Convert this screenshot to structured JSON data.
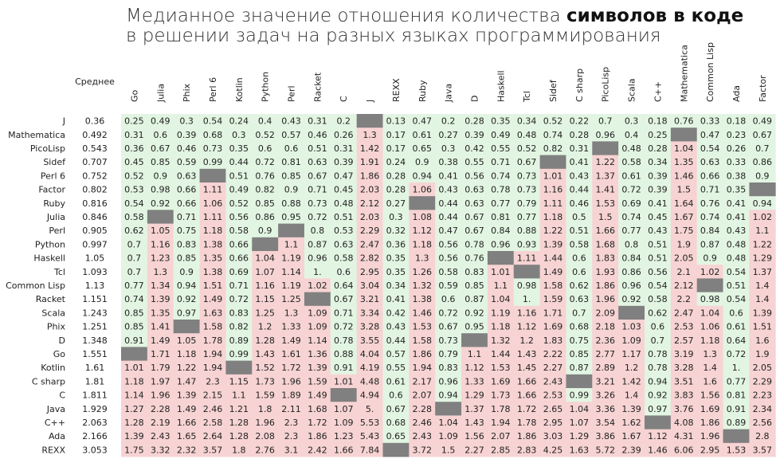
{
  "title": {
    "line1_before": "Медианное значение отношения количества ",
    "line1_bold": "символов в коде",
    "line2": "в решении задач на разных языках программирования"
  },
  "colors": {
    "green": "#e2f5e2",
    "red": "#f7d3d3",
    "missing": "#808080"
  },
  "chart_data": {
    "type": "heatmap",
    "mean_label": "Среднее",
    "columns": [
      "Go",
      "Julia",
      "Phix",
      "Perl 6",
      "Kotlin",
      "Python",
      "Perl",
      "Racket",
      "C",
      "J",
      "REXX",
      "Ruby",
      "Java",
      "D",
      "Haskell",
      "Tcl",
      "Sidef",
      "C sharp",
      "PicoLisp",
      "Scala",
      "C++",
      "Mathematica",
      "Common Lisp",
      "Ada",
      "Factor"
    ],
    "rows": [
      {
        "name": "J",
        "mean": "0.36",
        "values": [
          "0.25",
          "0.49",
          "0.3",
          "0.54",
          "0.24",
          "0.4",
          "0.43",
          "0.31",
          "0.2",
          null,
          "0.13",
          "0.47",
          "0.2",
          "0.28",
          "0.35",
          "0.34",
          "0.52",
          "0.22",
          "0.7",
          "0.3",
          "0.18",
          "0.76",
          "0.33",
          "0.18",
          "0.49"
        ]
      },
      {
        "name": "Mathematica",
        "mean": "0.492",
        "values": [
          "0.31",
          "0.6",
          "0.39",
          "0.68",
          "0.3",
          "0.52",
          "0.57",
          "0.46",
          "0.26",
          "1.3",
          "0.17",
          "0.61",
          "0.27",
          "0.39",
          "0.49",
          "0.48",
          "0.74",
          "0.28",
          "0.96",
          "0.4",
          "0.25",
          null,
          "0.47",
          "0.23",
          "0.67"
        ]
      },
      {
        "name": "PicoLisp",
        "mean": "0.543",
        "values": [
          "0.36",
          "0.67",
          "0.46",
          "0.73",
          "0.35",
          "0.6",
          "0.6",
          "0.51",
          "0.31",
          "1.42",
          "0.17",
          "0.65",
          "0.3",
          "0.42",
          "0.55",
          "0.52",
          "0.82",
          "0.31",
          null,
          "0.48",
          "0.28",
          "1.04",
          "0.54",
          "0.26",
          "0.7"
        ]
      },
      {
        "name": "Sidef",
        "mean": "0.707",
        "values": [
          "0.45",
          "0.85",
          "0.59",
          "0.99",
          "0.44",
          "0.72",
          "0.81",
          "0.63",
          "0.39",
          "1.91",
          "0.24",
          "0.9",
          "0.38",
          "0.55",
          "0.71",
          "0.67",
          null,
          "0.41",
          "1.22",
          "0.58",
          "0.34",
          "1.35",
          "0.63",
          "0.33",
          "0.86"
        ]
      },
      {
        "name": "Perl 6",
        "mean": "0.752",
        "values": [
          "0.52",
          "0.9",
          "0.63",
          null,
          "0.51",
          "0.76",
          "0.85",
          "0.67",
          "0.47",
          "1.86",
          "0.28",
          "0.94",
          "0.41",
          "0.56",
          "0.74",
          "0.73",
          "1.01",
          "0.43",
          "1.37",
          "0.61",
          "0.39",
          "1.46",
          "0.66",
          "0.38",
          "0.9"
        ]
      },
      {
        "name": "Factor",
        "mean": "0.802",
        "values": [
          "0.53",
          "0.98",
          "0.66",
          "1.11",
          "0.49",
          "0.82",
          "0.9",
          "0.71",
          "0.45",
          "2.03",
          "0.28",
          "1.06",
          "0.43",
          "0.63",
          "0.78",
          "0.73",
          "1.16",
          "0.44",
          "1.41",
          "0.72",
          "0.39",
          "1.5",
          "0.71",
          "0.35",
          null
        ]
      },
      {
        "name": "Ruby",
        "mean": "0.816",
        "values": [
          "0.54",
          "0.92",
          "0.66",
          "1.06",
          "0.52",
          "0.85",
          "0.88",
          "0.73",
          "0.48",
          "2.12",
          "0.27",
          null,
          "0.44",
          "0.63",
          "0.77",
          "0.79",
          "1.11",
          "0.46",
          "1.53",
          "0.69",
          "0.41",
          "1.64",
          "0.76",
          "0.41",
          "0.94"
        ]
      },
      {
        "name": "Julia",
        "mean": "0.846",
        "values": [
          "0.58",
          null,
          "0.71",
          "1.11",
          "0.56",
          "0.86",
          "0.95",
          "0.72",
          "0.51",
          "2.03",
          "0.3",
          "1.08",
          "0.44",
          "0.67",
          "0.81",
          "0.77",
          "1.18",
          "0.5",
          "1.5",
          "0.74",
          "0.45",
          "1.67",
          "0.74",
          "0.41",
          "1.02"
        ]
      },
      {
        "name": "Perl",
        "mean": "0.905",
        "values": [
          "0.62",
          "1.05",
          "0.75",
          "1.18",
          "0.58",
          "0.9",
          null,
          "0.8",
          "0.53",
          "2.29",
          "0.32",
          "1.12",
          "0.47",
          "0.67",
          "0.84",
          "0.88",
          "1.22",
          "0.51",
          "1.66",
          "0.77",
          "0.43",
          "1.75",
          "0.84",
          "0.43",
          "1.1"
        ]
      },
      {
        "name": "Python",
        "mean": "0.997",
        "values": [
          "0.7",
          "1.16",
          "0.83",
          "1.38",
          "0.66",
          null,
          "1.1",
          "0.87",
          "0.63",
          "2.47",
          "0.36",
          "1.18",
          "0.56",
          "0.78",
          "0.96",
          "0.93",
          "1.39",
          "0.58",
          "1.68",
          "0.8",
          "0.51",
          "1.9",
          "0.87",
          "0.48",
          "1.22"
        ]
      },
      {
        "name": "Haskell",
        "mean": "1.05",
        "values": [
          "0.7",
          "1.23",
          "0.85",
          "1.35",
          "0.66",
          "1.04",
          "1.19",
          "0.96",
          "0.58",
          "2.82",
          "0.35",
          "1.3",
          "0.56",
          "0.76",
          null,
          "1.11",
          "1.44",
          "0.6",
          "1.83",
          "0.84",
          "0.51",
          "2.05",
          "0.9",
          "0.48",
          "1.29"
        ]
      },
      {
        "name": "Tcl",
        "mean": "1.093",
        "values": [
          "0.7",
          "1.3",
          "0.9",
          "1.38",
          "0.69",
          "1.07",
          "1.14",
          "1.",
          "0.6",
          "2.95",
          "0.35",
          "1.26",
          "0.58",
          "0.83",
          "1.01",
          null,
          "1.49",
          "0.6",
          "1.93",
          "0.86",
          "0.56",
          "2.1",
          "1.02",
          "0.54",
          "1.37"
        ]
      },
      {
        "name": "Common Lisp",
        "mean": "1.13",
        "values": [
          "0.77",
          "1.34",
          "0.94",
          "1.51",
          "0.71",
          "1.16",
          "1.19",
          "1.02",
          "0.64",
          "3.04",
          "0.34",
          "1.32",
          "0.59",
          "0.85",
          "1.1",
          "0.98",
          "1.58",
          "0.62",
          "1.86",
          "0.96",
          "0.54",
          "2.12",
          null,
          "0.51",
          "1.4"
        ]
      },
      {
        "name": "Racket",
        "mean": "1.151",
        "values": [
          "0.74",
          "1.39",
          "0.92",
          "1.49",
          "0.72",
          "1.15",
          "1.25",
          null,
          "0.67",
          "3.21",
          "0.41",
          "1.38",
          "0.6",
          "0.87",
          "1.04",
          "1.",
          "1.59",
          "0.63",
          "1.96",
          "0.92",
          "0.58",
          "2.2",
          "0.98",
          "0.54",
          "1.4"
        ]
      },
      {
        "name": "Scala",
        "mean": "1.243",
        "values": [
          "0.85",
          "1.35",
          "0.97",
          "1.63",
          "0.83",
          "1.25",
          "1.3",
          "1.09",
          "0.71",
          "3.34",
          "0.42",
          "1.46",
          "0.72",
          "0.92",
          "1.19",
          "1.16",
          "1.71",
          "0.7",
          "2.09",
          null,
          "0.62",
          "2.47",
          "1.04",
          "0.6",
          "1.39"
        ]
      },
      {
        "name": "Phix",
        "mean": "1.251",
        "values": [
          "0.85",
          "1.41",
          null,
          "1.58",
          "0.82",
          "1.2",
          "1.33",
          "1.09",
          "0.72",
          "3.28",
          "0.43",
          "1.53",
          "0.67",
          "0.95",
          "1.18",
          "1.12",
          "1.69",
          "0.68",
          "2.18",
          "1.03",
          "0.6",
          "2.53",
          "1.06",
          "0.61",
          "1.51"
        ]
      },
      {
        "name": "D",
        "mean": "1.348",
        "values": [
          "0.91",
          "1.49",
          "1.05",
          "1.78",
          "0.89",
          "1.28",
          "1.49",
          "1.14",
          "0.78",
          "3.55",
          "0.44",
          "1.58",
          "0.73",
          null,
          "1.32",
          "1.2",
          "1.83",
          "0.75",
          "2.36",
          "1.09",
          "0.7",
          "2.57",
          "1.18",
          "0.64",
          "1.6"
        ]
      },
      {
        "name": "Go",
        "mean": "1.551",
        "values": [
          null,
          "1.71",
          "1.18",
          "1.94",
          "0.99",
          "1.43",
          "1.61",
          "1.36",
          "0.88",
          "4.04",
          "0.57",
          "1.86",
          "0.79",
          "1.1",
          "1.44",
          "1.43",
          "2.22",
          "0.85",
          "2.77",
          "1.17",
          "0.78",
          "3.19",
          "1.3",
          "0.72",
          "1.9"
        ]
      },
      {
        "name": "Kotlin",
        "mean": "1.61",
        "values": [
          "1.01",
          "1.79",
          "1.22",
          "1.94",
          null,
          "1.52",
          "1.72",
          "1.39",
          "0.91",
          "4.19",
          "0.55",
          "1.94",
          "0.83",
          "1.12",
          "1.53",
          "1.45",
          "2.27",
          "0.87",
          "2.89",
          "1.2",
          "0.78",
          "3.28",
          "1.4",
          "1.",
          "2.05"
        ]
      },
      {
        "name": "C sharp",
        "mean": "1.81",
        "values": [
          "1.18",
          "1.97",
          "1.47",
          "2.3",
          "1.15",
          "1.73",
          "1.96",
          "1.59",
          "1.01",
          "4.48",
          "0.61",
          "2.17",
          "0.96",
          "1.33",
          "1.69",
          "1.66",
          "2.43",
          null,
          "3.21",
          "1.42",
          "0.94",
          "3.51",
          "1.6",
          "0.77",
          "2.29"
        ]
      },
      {
        "name": "C",
        "mean": "1.811",
        "values": [
          "1.14",
          "1.96",
          "1.39",
          "2.15",
          "1.1",
          "1.59",
          "1.89",
          "1.49",
          null,
          "4.94",
          "0.6",
          "2.07",
          "0.94",
          "1.29",
          "1.73",
          "1.66",
          "2.53",
          "0.99",
          "3.26",
          "1.4",
          "0.92",
          "3.83",
          "1.56",
          "0.81",
          "2.23"
        ]
      },
      {
        "name": "Java",
        "mean": "1.929",
        "values": [
          "1.27",
          "2.28",
          "1.49",
          "2.46",
          "1.21",
          "1.8",
          "2.11",
          "1.68",
          "1.07",
          "5.",
          "0.67",
          "2.28",
          null,
          "1.37",
          "1.78",
          "1.72",
          "2.65",
          "1.04",
          "3.36",
          "1.39",
          "0.97",
          "3.76",
          "1.69",
          "0.91",
          "2.34"
        ]
      },
      {
        "name": "C++",
        "mean": "2.063",
        "values": [
          "1.28",
          "2.19",
          "1.66",
          "2.58",
          "1.28",
          "1.96",
          "2.3",
          "1.72",
          "1.09",
          "5.53",
          "0.68",
          "2.46",
          "1.04",
          "1.43",
          "1.94",
          "1.78",
          "2.95",
          "1.07",
          "3.54",
          "1.62",
          null,
          "4.08",
          "1.86",
          "0.89",
          "2.56"
        ]
      },
      {
        "name": "Ada",
        "mean": "2.166",
        "values": [
          "1.39",
          "2.43",
          "1.65",
          "2.64",
          "1.28",
          "2.08",
          "2.3",
          "1.86",
          "1.23",
          "5.43",
          "0.65",
          "2.43",
          "1.09",
          "1.56",
          "2.07",
          "1.86",
          "3.03",
          "1.29",
          "3.86",
          "1.67",
          "1.12",
          "4.31",
          "1.96",
          null,
          "2.8"
        ]
      },
      {
        "name": "REXX",
        "mean": "3.053",
        "values": [
          "1.75",
          "3.32",
          "2.32",
          "3.57",
          "1.8",
          "2.76",
          "3.1",
          "2.42",
          "1.66",
          "7.84",
          null,
          "3.72",
          "1.5",
          "2.27",
          "2.85",
          "2.83",
          "4.25",
          "1.63",
          "5.72",
          "2.39",
          "1.46",
          "6.06",
          "2.95",
          "1.53",
          "3.57"
        ]
      }
    ]
  }
}
